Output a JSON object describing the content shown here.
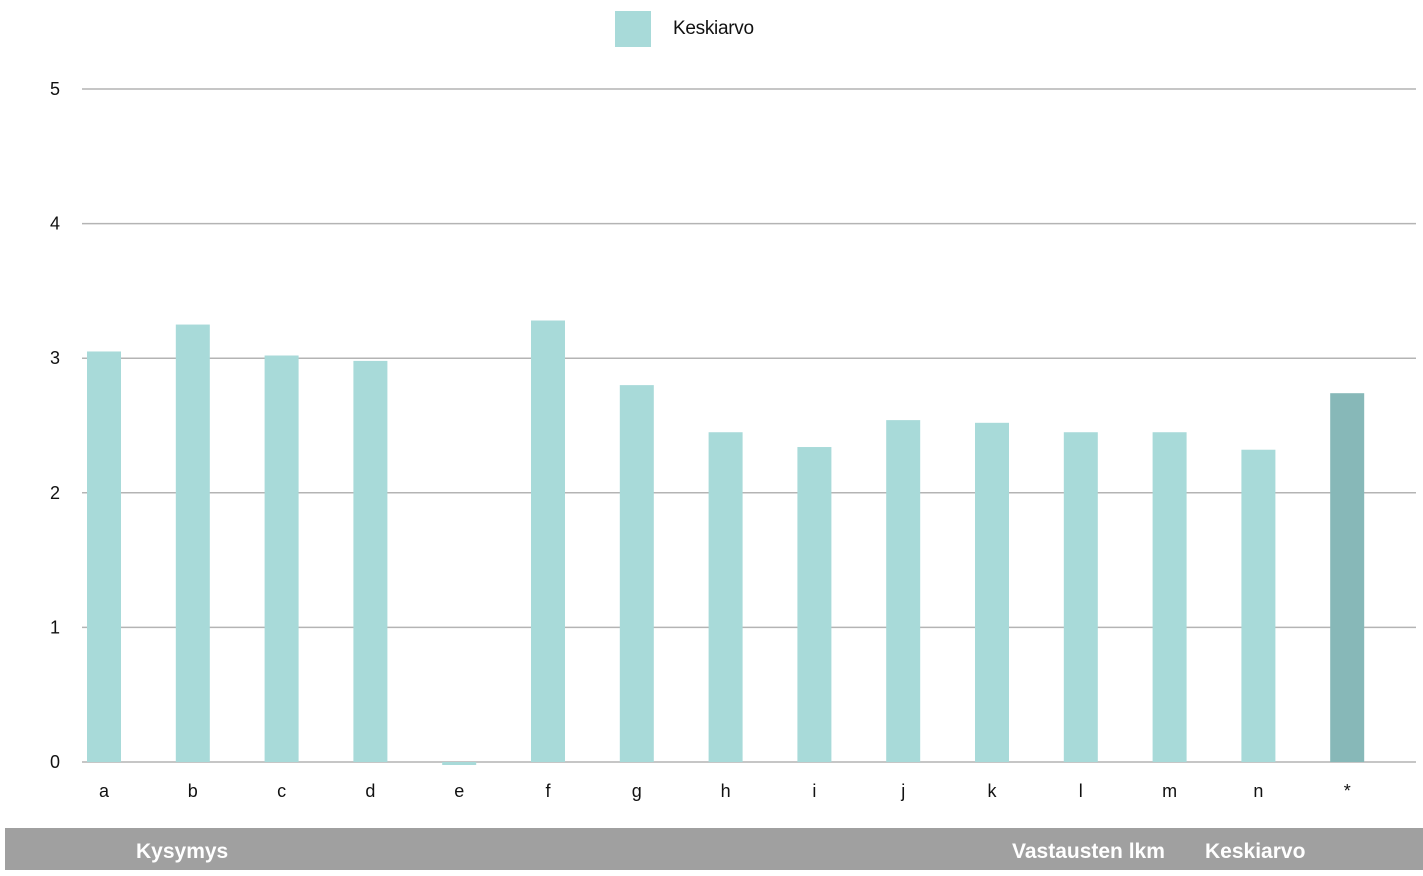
{
  "chart_data": {
    "type": "bar",
    "categories": [
      "a",
      "b",
      "c",
      "d",
      "e",
      "f",
      "g",
      "h",
      "i",
      "j",
      "k",
      "l",
      "m",
      "n",
      "*"
    ],
    "series": [
      {
        "name": "Keskiarvo",
        "values": [
          3.05,
          3.25,
          3.02,
          2.98,
          0.0,
          3.28,
          2.8,
          2.45,
          2.34,
          2.54,
          2.52,
          2.45,
          2.45,
          2.32,
          2.74
        ]
      }
    ],
    "title": "",
    "xlabel": "",
    "ylabel": "",
    "ylim": [
      0,
      5
    ],
    "yticks": [
      "0",
      "1",
      "2",
      "3",
      "4",
      "5"
    ],
    "grid": true,
    "legend_position": "top-center",
    "colors": {
      "bar": "#a8dad9",
      "bar_total": "#87b8b8",
      "gridline": "#b4b4b4",
      "axis_text": "#111111"
    }
  },
  "table": {
    "headers": {
      "question": "Kysymys",
      "count": "Vastausten lkm",
      "mean": "Keskiarvo"
    }
  }
}
